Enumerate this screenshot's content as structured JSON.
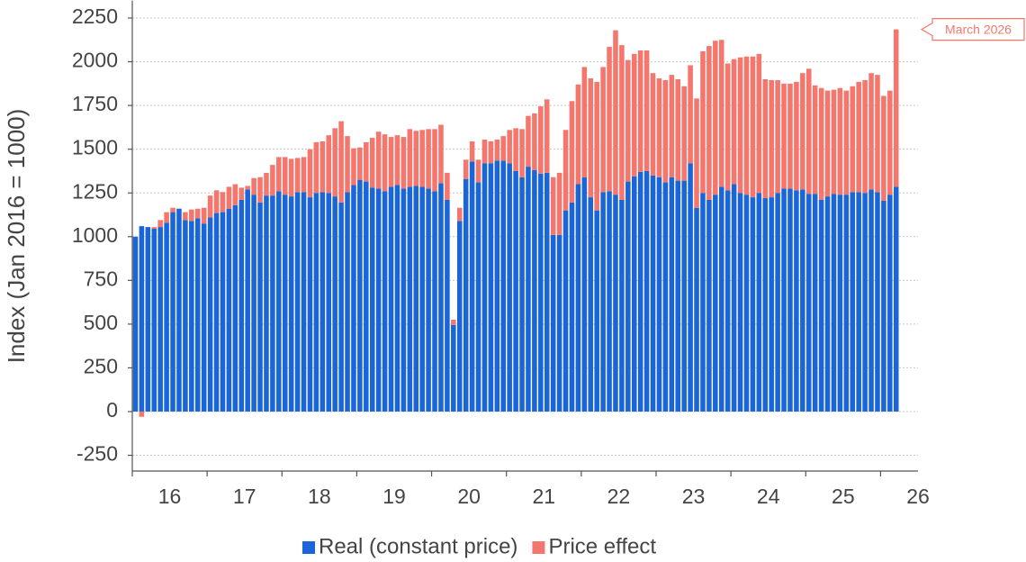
{
  "chart_data": {
    "type": "stacked_bar",
    "y_label": "Index (Jan 2016 = 1000)",
    "annotation": "March 2026",
    "ylim": [
      -340,
      2350
    ],
    "yticks": [
      -250,
      0,
      250,
      500,
      750,
      1000,
      1250,
      1500,
      1750,
      2000,
      2250
    ],
    "xlim": [
      2016,
      2026.5
    ],
    "xticks": [
      {
        "value": 2016.5,
        "label": "16"
      },
      {
        "value": 2017.5,
        "label": "17"
      },
      {
        "value": 2018.5,
        "label": "18"
      },
      {
        "value": 2019.5,
        "label": "19"
      },
      {
        "value": 2020.5,
        "label": "20"
      },
      {
        "value": 2021.5,
        "label": "21"
      },
      {
        "value": 2022.5,
        "label": "22"
      },
      {
        "value": 2023.5,
        "label": "23"
      },
      {
        "value": 2024.5,
        "label": "24"
      },
      {
        "value": 2025.5,
        "label": "25"
      },
      {
        "value": 2026.5,
        "label": "26"
      }
    ],
    "grid": true,
    "series": [
      {
        "name": "Real (constant price)",
        "color": "#1a66d9",
        "values": [
          1000,
          1060,
          1055,
          1045,
          1055,
          1080,
          1140,
          1160,
          1095,
          1090,
          1105,
          1075,
          1110,
          1135,
          1140,
          1160,
          1180,
          1210,
          1270,
          1240,
          1195,
          1235,
          1235,
          1260,
          1240,
          1230,
          1255,
          1255,
          1225,
          1250,
          1255,
          1250,
          1230,
          1195,
          1255,
          1295,
          1325,
          1315,
          1280,
          1275,
          1260,
          1285,
          1295,
          1275,
          1285,
          1290,
          1285,
          1275,
          1260,
          1305,
          1210,
          495,
          1090,
          1330,
          1430,
          1310,
          1420,
          1420,
          1435,
          1435,
          1420,
          1375,
          1340,
          1400,
          1380,
          1360,
          1365,
          1010,
          1010,
          1150,
          1195,
          1300,
          1340,
          1225,
          1150,
          1255,
          1260,
          1240,
          1210,
          1315,
          1345,
          1370,
          1375,
          1350,
          1340,
          1310,
          1340,
          1320,
          1320,
          1420,
          1165,
          1250,
          1210,
          1240,
          1285,
          1265,
          1300,
          1250,
          1240,
          1225,
          1250,
          1220,
          1225,
          1250,
          1275,
          1275,
          1265,
          1270,
          1245,
          1245,
          1210,
          1230,
          1245,
          1240,
          1240,
          1255,
          1255,
          1250,
          1270,
          1255,
          1205,
          1240,
          1285
        ]
      },
      {
        "name": "Price effect",
        "color": "#f4766c",
        "values": [
          0,
          -30,
          0,
          10,
          40,
          60,
          25,
          0,
          45,
          65,
          55,
          90,
          125,
          130,
          115,
          125,
          120,
          70,
          20,
          95,
          145,
          130,
          175,
          195,
          215,
          215,
          195,
          200,
          275,
          290,
          290,
          330,
          390,
          465,
          320,
          210,
          185,
          225,
          285,
          325,
          325,
          285,
          285,
          295,
          330,
          315,
          325,
          340,
          355,
          335,
          155,
          30,
          75,
          110,
          115,
          130,
          135,
          125,
          120,
          140,
          190,
          245,
          275,
          290,
          325,
          385,
          420,
          330,
          355,
          460,
          580,
          570,
          630,
          680,
          735,
          715,
          825,
          940,
          885,
          695,
          700,
          695,
          690,
          585,
          565,
          585,
          585,
          580,
          540,
          560,
          625,
          810,
          880,
          880,
          840,
          725,
          715,
          775,
          790,
          805,
          795,
          680,
          670,
          645,
          600,
          600,
          620,
          665,
          715,
          620,
          640,
          605,
          595,
          610,
          595,
          605,
          630,
          645,
          665,
          670,
          600,
          595,
          900
        ]
      }
    ]
  }
}
